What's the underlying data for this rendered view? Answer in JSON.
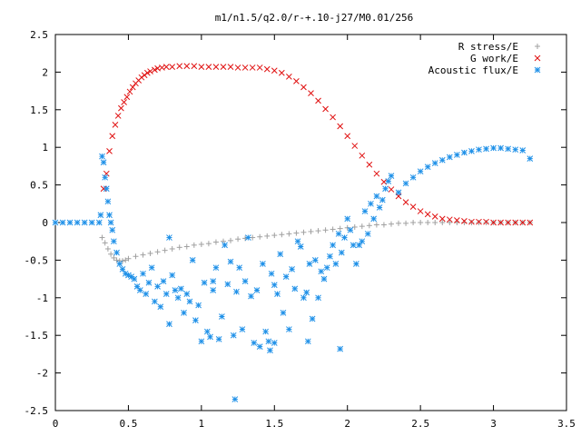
{
  "chart_data": {
    "type": "scatter",
    "title": "m1/n1.5/q2.0/r-+.10-j27/M0.01/256",
    "xlabel": "",
    "ylabel": "",
    "xlim": [
      0,
      3.5
    ],
    "ylim": [
      -2.5,
      2.5
    ],
    "x_ticks": [
      0,
      0.5,
      1,
      1.5,
      2,
      2.5,
      3,
      3.5
    ],
    "x_tick_labels": [
      "0",
      "0.5",
      "1",
      "1.5",
      "2",
      "2.5",
      "3",
      "3.5"
    ],
    "y_ticks": [
      -2.5,
      -2,
      -1.5,
      -1,
      -0.5,
      0,
      0.5,
      1,
      1.5,
      2,
      2.5
    ],
    "y_tick_labels": [
      "-2.5",
      "-2",
      "-1.5",
      "-1",
      "-0.5",
      "0",
      "0.5",
      "1",
      "1.5",
      "2",
      "2.5"
    ],
    "grid": false,
    "legend_position": "top-right",
    "series": [
      {
        "name": "R stress/E",
        "marker": "plus",
        "color": "#a0a0a0",
        "x": [
          0.32,
          0.34,
          0.36,
          0.38,
          0.4,
          0.42,
          0.44,
          0.46,
          0.48,
          0.5,
          0.55,
          0.6,
          0.65,
          0.7,
          0.75,
          0.8,
          0.85,
          0.9,
          0.95,
          1.0,
          1.05,
          1.1,
          1.15,
          1.2,
          1.25,
          1.3,
          1.35,
          1.4,
          1.45,
          1.5,
          1.55,
          1.6,
          1.65,
          1.7,
          1.75,
          1.8,
          1.85,
          1.9,
          1.95,
          2.0,
          2.05,
          2.1,
          2.15,
          2.2,
          2.25,
          2.3,
          2.35,
          2.4,
          2.45,
          2.5,
          2.55,
          2.6,
          2.65,
          2.7,
          2.75,
          2.8,
          2.85,
          2.9,
          2.95,
          3.0,
          3.05,
          3.1,
          3.15,
          3.2,
          3.25
        ],
        "y": [
          -0.2,
          -0.27,
          -0.35,
          -0.42,
          -0.47,
          -0.5,
          -0.51,
          -0.51,
          -0.5,
          -0.48,
          -0.45,
          -0.43,
          -0.41,
          -0.39,
          -0.37,
          -0.35,
          -0.33,
          -0.32,
          -0.3,
          -0.29,
          -0.28,
          -0.26,
          -0.25,
          -0.24,
          -0.22,
          -0.21,
          -0.2,
          -0.19,
          -0.18,
          -0.17,
          -0.16,
          -0.15,
          -0.14,
          -0.13,
          -0.12,
          -0.11,
          -0.1,
          -0.09,
          -0.08,
          -0.07,
          -0.06,
          -0.05,
          -0.04,
          -0.03,
          -0.03,
          -0.02,
          -0.01,
          -0.01,
          0.0,
          0.0,
          0.0,
          0.0,
          0.0,
          0.0,
          0.0,
          0.0,
          0.0,
          0.0,
          0.0,
          0.0,
          0.0,
          0.0,
          0.0,
          0.0,
          0.0
        ]
      },
      {
        "name": "G work/E",
        "marker": "cross",
        "color": "#e01010",
        "x": [
          0.33,
          0.35,
          0.37,
          0.39,
          0.41,
          0.43,
          0.45,
          0.47,
          0.49,
          0.51,
          0.53,
          0.55,
          0.57,
          0.59,
          0.61,
          0.63,
          0.65,
          0.68,
          0.7,
          0.73,
          0.76,
          0.8,
          0.85,
          0.9,
          0.95,
          1.0,
          1.05,
          1.1,
          1.15,
          1.2,
          1.25,
          1.3,
          1.35,
          1.4,
          1.45,
          1.5,
          1.55,
          1.6,
          1.65,
          1.7,
          1.75,
          1.8,
          1.85,
          1.9,
          1.95,
          2.0,
          2.05,
          2.1,
          2.15,
          2.2,
          2.25,
          2.3,
          2.35,
          2.4,
          2.45,
          2.5,
          2.55,
          2.6,
          2.65,
          2.7,
          2.75,
          2.8,
          2.85,
          2.9,
          2.95,
          3.0,
          3.05,
          3.1,
          3.15,
          3.2,
          3.25
        ],
        "y": [
          0.45,
          0.65,
          0.95,
          1.15,
          1.3,
          1.42,
          1.52,
          1.6,
          1.67,
          1.74,
          1.8,
          1.85,
          1.89,
          1.93,
          1.96,
          1.99,
          2.01,
          2.03,
          2.05,
          2.06,
          2.07,
          2.07,
          2.08,
          2.08,
          2.08,
          2.07,
          2.07,
          2.07,
          2.07,
          2.07,
          2.06,
          2.06,
          2.06,
          2.06,
          2.04,
          2.02,
          1.99,
          1.94,
          1.88,
          1.8,
          1.72,
          1.62,
          1.51,
          1.4,
          1.28,
          1.15,
          1.02,
          0.89,
          0.77,
          0.65,
          0.54,
          0.44,
          0.35,
          0.27,
          0.21,
          0.15,
          0.11,
          0.08,
          0.05,
          0.04,
          0.03,
          0.02,
          0.01,
          0.01,
          0.01,
          0.0,
          0.0,
          0.0,
          0.0,
          0.0,
          0.0
        ]
      },
      {
        "name": "Acoustic flux/E",
        "marker": "star",
        "color": "#1e90e8",
        "x": [
          0.0,
          0.05,
          0.1,
          0.15,
          0.2,
          0.25,
          0.3,
          0.31,
          0.32,
          0.33,
          0.34,
          0.35,
          0.36,
          0.37,
          0.38,
          0.39,
          0.4,
          0.42,
          0.44,
          0.46,
          0.48,
          0.5,
          0.52,
          0.54,
          0.56,
          0.58,
          0.6,
          0.62,
          0.64,
          0.66,
          0.68,
          0.7,
          0.72,
          0.74,
          0.76,
          0.78,
          0.8,
          0.82,
          0.84,
          0.86,
          0.88,
          0.9,
          0.92,
          0.94,
          0.96,
          0.98,
          1.0,
          1.02,
          1.04,
          1.06,
          1.08,
          1.1,
          1.12,
          1.14,
          1.16,
          1.18,
          1.2,
          1.22,
          1.24,
          1.26,
          1.28,
          1.3,
          1.32,
          1.34,
          1.36,
          1.38,
          1.4,
          1.42,
          1.44,
          1.46,
          1.48,
          1.5,
          1.52,
          1.54,
          1.56,
          1.58,
          1.6,
          1.62,
          1.64,
          1.66,
          1.68,
          1.7,
          1.72,
          1.74,
          1.76,
          1.78,
          1.8,
          1.82,
          1.84,
          1.86,
          1.88,
          1.9,
          1.92,
          1.94,
          1.96,
          1.98,
          2.0,
          2.02,
          2.04,
          2.06,
          2.08,
          2.1,
          2.12,
          2.14,
          2.16,
          2.18,
          2.2,
          2.22,
          2.24,
          2.26,
          2.28,
          2.3,
          2.35,
          2.4,
          2.45,
          2.5,
          2.55,
          2.6,
          2.65,
          2.7,
          2.75,
          2.8,
          2.85,
          2.9,
          2.95,
          3.0,
          3.05,
          3.1,
          3.15,
          3.2,
          3.25,
          1.23,
          1.47,
          1.5,
          1.95,
          1.73,
          0.78,
          1.08
        ],
        "y": [
          0.0,
          0.0,
          0.0,
          0.0,
          0.0,
          0.0,
          0.0,
          0.1,
          0.88,
          0.8,
          0.6,
          0.45,
          0.28,
          0.1,
          0.0,
          -0.1,
          -0.25,
          -0.4,
          -0.55,
          -0.62,
          -0.68,
          -0.7,
          -0.72,
          -0.75,
          -0.85,
          -0.9,
          -0.68,
          -0.95,
          -0.8,
          -0.6,
          -1.05,
          -0.85,
          -1.12,
          -0.78,
          -0.95,
          -1.35,
          -0.7,
          -0.9,
          -1.0,
          -0.88,
          -1.2,
          -0.95,
          -1.05,
          -0.5,
          -1.3,
          -1.1,
          -1.58,
          -0.8,
          -1.45,
          -1.52,
          -0.78,
          -0.6,
          -1.55,
          -1.25,
          -0.3,
          -0.82,
          -0.52,
          -1.5,
          -0.92,
          -0.6,
          -1.42,
          -0.78,
          -0.2,
          -0.98,
          -1.6,
          -0.9,
          -1.65,
          -0.55,
          -1.45,
          -1.58,
          -0.68,
          -0.83,
          -0.95,
          -0.42,
          -1.2,
          -0.72,
          -1.42,
          -0.62,
          -0.88,
          -0.25,
          -0.32,
          -1.0,
          -0.93,
          -0.55,
          -1.28,
          -0.5,
          -1.0,
          -0.65,
          -0.75,
          -0.6,
          -0.45,
          -0.3,
          -0.55,
          -0.15,
          -0.4,
          -0.2,
          0.05,
          -0.1,
          -0.3,
          -0.55,
          -0.3,
          -0.25,
          0.15,
          -0.15,
          0.25,
          0.05,
          0.35,
          0.2,
          0.3,
          0.45,
          0.55,
          0.62,
          0.4,
          0.52,
          0.6,
          0.68,
          0.74,
          0.79,
          0.83,
          0.87,
          0.9,
          0.93,
          0.95,
          0.97,
          0.98,
          0.99,
          0.99,
          0.98,
          0.97,
          0.96,
          0.85,
          -2.35,
          -1.7,
          -1.6,
          -1.68,
          -1.58,
          -0.2,
          -0.9
        ]
      }
    ]
  }
}
